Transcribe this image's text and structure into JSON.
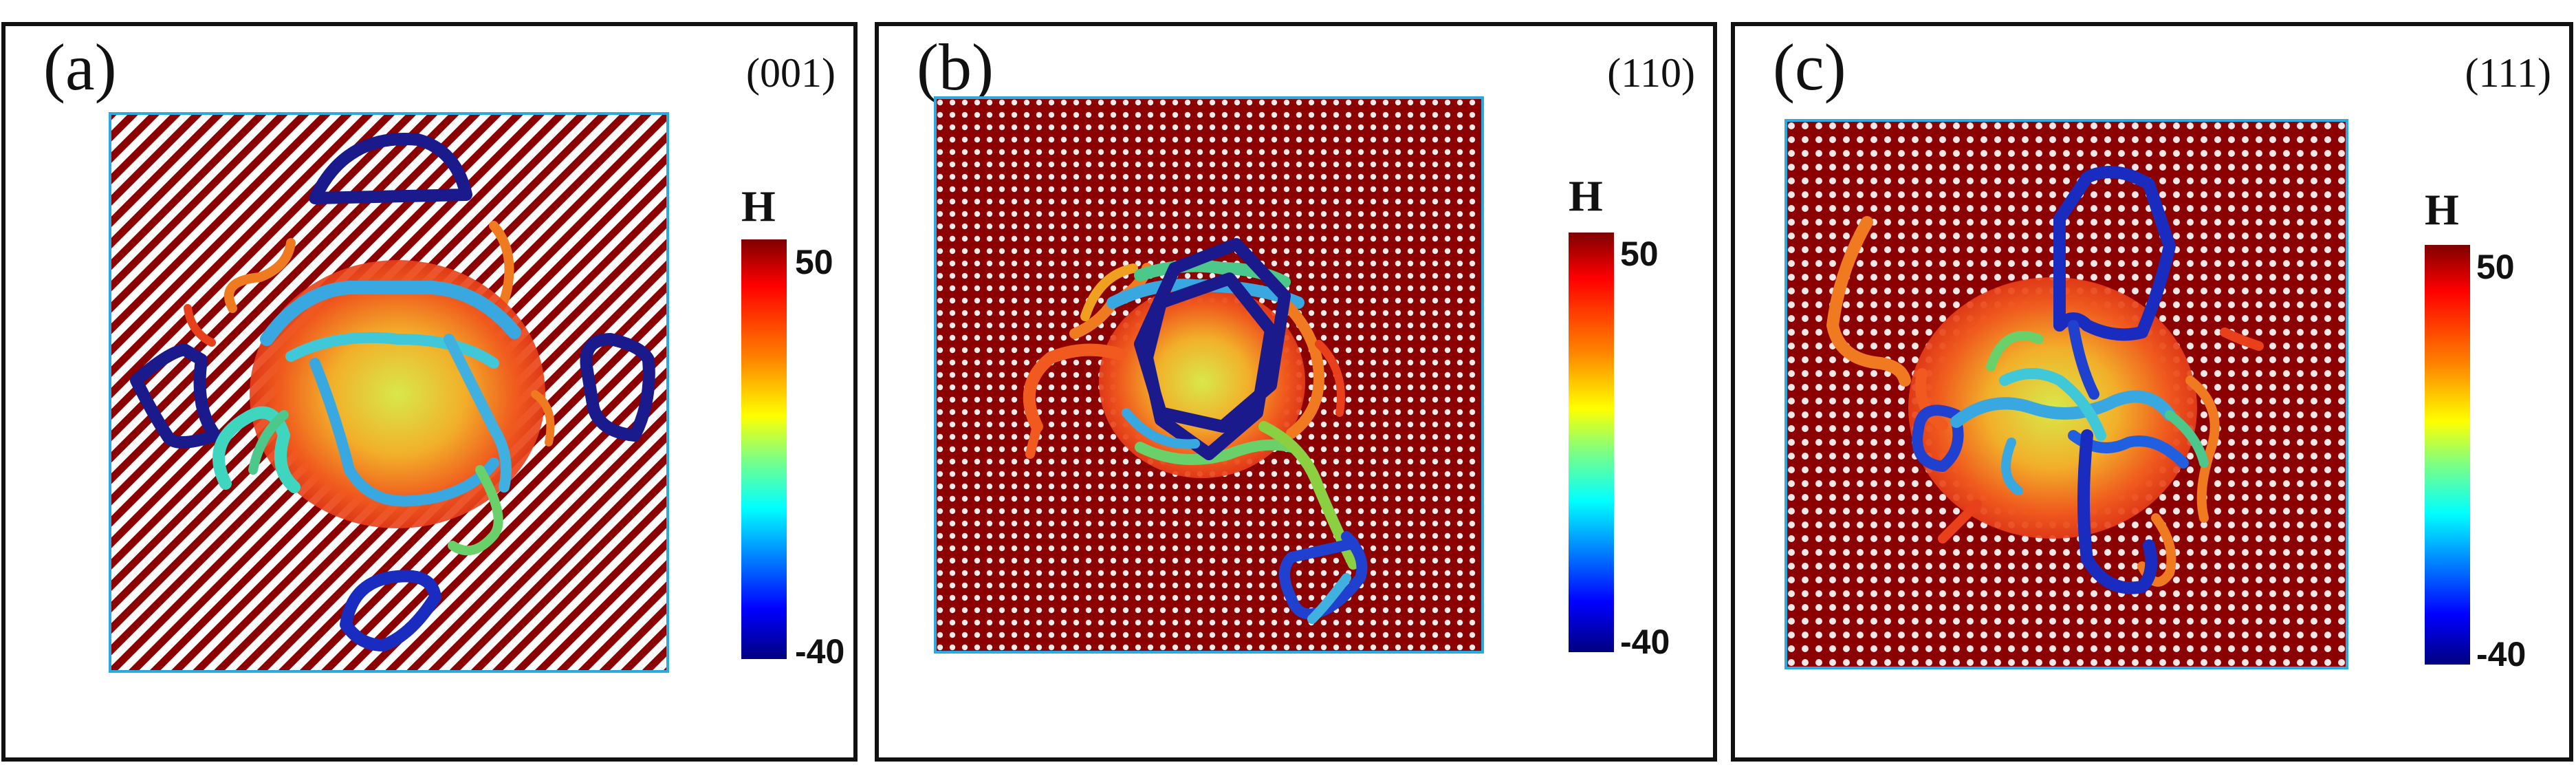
{
  "panels": [
    {
      "label": "(a)",
      "orientation": "(001)"
    },
    {
      "label": "(b)",
      "orientation": "(110)"
    },
    {
      "label": "(c)",
      "orientation": "(111)"
    }
  ],
  "colorbar": {
    "title": "H",
    "max_label": "50",
    "min_label": "-40",
    "max": 50,
    "min": -40,
    "colors": [
      "#7f0000",
      "#ff0000",
      "#ff8000",
      "#ffff00",
      "#80ff80",
      "#00ffff",
      "#0080ff",
      "#0000ff",
      "#00007f"
    ]
  },
  "colors": {
    "lattice_dark": "#8b0000",
    "frame": "#29abe2",
    "loop_dark": "#1a1a8c"
  }
}
